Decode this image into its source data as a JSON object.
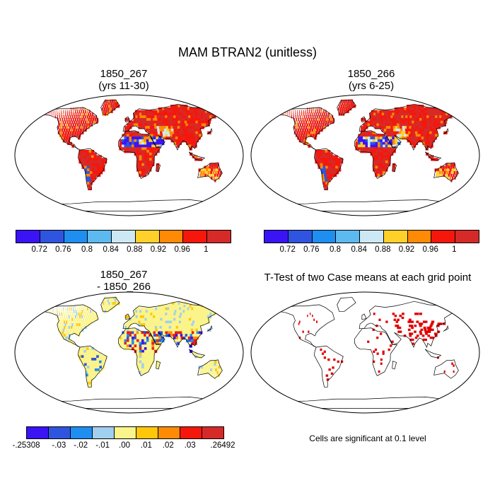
{
  "figure": {
    "title": "MAM BTRAN2 (unitless)"
  },
  "panels": [
    {
      "id": "p1",
      "title_line1": "1850_267",
      "title_line2": "(yrs 11-30)",
      "type": "mean"
    },
    {
      "id": "p2",
      "title_line1": "1850_266",
      "title_line2": "(yrs 6-25)",
      "type": "mean"
    },
    {
      "id": "p3",
      "title_line1": "1850_267",
      "title_line2": "- 1850_266",
      "type": "difference"
    },
    {
      "id": "p4",
      "title_line1": "T-Test of two Case means at each grid point",
      "title_line2": "",
      "type": "ttest"
    }
  ],
  "colorbar_mean": {
    "colors": [
      "#3a14f5",
      "#2f55e0",
      "#1e8ff0",
      "#5cbaf0",
      "#cde8f5",
      "#ffd02a",
      "#ff8a05",
      "#f5170c",
      "#d62a28"
    ],
    "labels": [
      "0.72",
      "0.76",
      "0.8",
      "0.84",
      "0.88",
      "0.92",
      "0.96",
      "1"
    ]
  },
  "colorbar_diff": {
    "colors": [
      "#3a14f5",
      "#2f55e0",
      "#1e8ff0",
      "#a0cff0",
      "#fbf48a",
      "#ffc70a",
      "#ff8a05",
      "#f5170c",
      "#d62a28"
    ],
    "labels": [
      "-.25308",
      "-.03",
      "-.02",
      "-.01",
      ".00",
      ".01",
      ".02",
      ".03",
      ".26492"
    ]
  },
  "ttest": {
    "note": "Cells are significant at 0.1 level",
    "marker_color": "#e00000"
  }
}
